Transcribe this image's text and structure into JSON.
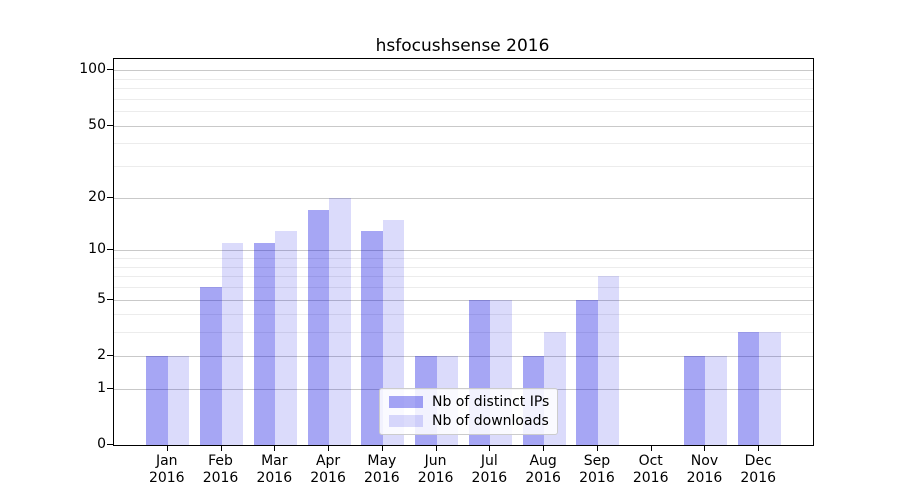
{
  "chart_data": {
    "type": "bar",
    "title": "hsfocushsense 2016",
    "categories": [
      "Jan",
      "Feb",
      "Mar",
      "Apr",
      "May",
      "Jun",
      "Jul",
      "Aug",
      "Sep",
      "Oct",
      "Nov",
      "Dec"
    ],
    "category_sublabel": "2016",
    "series": [
      {
        "name": "Nb of distinct IPs",
        "color": "rgba(0,0,224,0.35)",
        "values": [
          2,
          6,
          11,
          17,
          13,
          2,
          5,
          2,
          5,
          0,
          2,
          3
        ]
      },
      {
        "name": "Nb of downloads",
        "color": "rgba(0,0,224,0.14)",
        "values": [
          2,
          11,
          13,
          20,
          15,
          2,
          5,
          3,
          7,
          0,
          2,
          3
        ]
      }
    ],
    "yscale": "log1p",
    "ylim": [
      0,
      115
    ],
    "y_major_ticks": [
      0,
      1,
      2,
      5,
      10,
      20,
      50,
      100
    ],
    "y_minor_gridlines": [
      3,
      4,
      6,
      7,
      8,
      9,
      30,
      40,
      60,
      70,
      80,
      90
    ],
    "grid": true,
    "legend_position": "lower center",
    "xlabel": "",
    "ylabel": ""
  },
  "colors": {
    "major_grid": "#c9c9c9",
    "minor_grid": "#ececec",
    "spine": "#000000",
    "background": "#ffffff"
  }
}
